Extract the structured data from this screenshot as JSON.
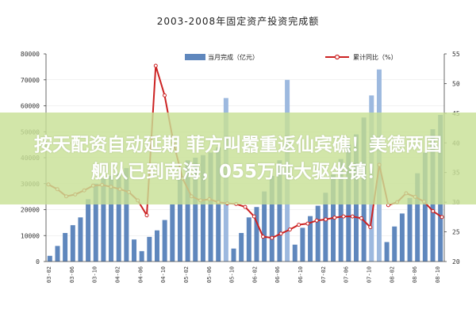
{
  "chart_data": {
    "type": "bar+line",
    "title": "2003-2008年固定资产投资完成额",
    "legend": {
      "placement": "top",
      "bar_label": "当月完成（亿元）",
      "line_label": "累计同比（%）"
    },
    "y_left": {
      "ticks": [
        "80000",
        "70000",
        "60000",
        "50000",
        "40000",
        "30000",
        "20000",
        "10000",
        "0"
      ],
      "ylim": [
        0,
        80000
      ]
    },
    "y_right": {
      "ticks": [
        "55",
        "50",
        "45",
        "40",
        "35",
        "30",
        "25",
        "20"
      ],
      "ylim": [
        20,
        55
      ]
    },
    "x_tick_labels": [
      "03-02",
      "03-06",
      "03-10",
      "04-02",
      "04-06",
      "04-10",
      "05-02",
      "05-06",
      "05-10",
      "06-02",
      "06-06",
      "06-10",
      "07-02",
      "07-06",
      "07-10",
      "08-02",
      "08-06",
      "08-10"
    ],
    "bars": [
      2200,
      6000,
      11000,
      14000,
      17000,
      24000,
      30000,
      32000,
      33000,
      34000,
      36000,
      8500,
      4000,
      9500,
      12000,
      16000,
      22000,
      33000,
      39000,
      40000,
      41000,
      42000,
      44000,
      63000,
      5000,
      11000,
      17000,
      21000,
      27000,
      33000,
      39000,
      70000,
      6500,
      13000,
      17500,
      21500,
      26500,
      33500,
      39500,
      45000,
      49000,
      55500,
      64000,
      74000,
      7500,
      13500,
      18500,
      24500,
      34000,
      42000,
      51000,
      56500
    ],
    "line": [
      33.0,
      32.2,
      31.0,
      31.3,
      32.0,
      32.8,
      32.9,
      32.6,
      32.2,
      31.7,
      30.3,
      27.8,
      53.0,
      48.0,
      40.0,
      34.0,
      31.0,
      30.3,
      30.5,
      30.0,
      29.8,
      29.7,
      29.2,
      27.6,
      24.2,
      24.0,
      24.7,
      25.4,
      26.2,
      26.4,
      26.9,
      27.1,
      27.4,
      27.6,
      27.6,
      27.3,
      25.8,
      36.3,
      29.5,
      30.0,
      31.5,
      30.9,
      30.1,
      28.5,
      27.5
    ],
    "line_x_slots": [
      0,
      2,
      4,
      6,
      8,
      10,
      12,
      14,
      16,
      18,
      20,
      22,
      24,
      26,
      28,
      30,
      32,
      34,
      36,
      38,
      40,
      42,
      44,
      46,
      48,
      50,
      52,
      54,
      56,
      58,
      60,
      62,
      64,
      66,
      68,
      70,
      72,
      74,
      76,
      78,
      80,
      82,
      84,
      86,
      88
    ],
    "colors": {
      "bar": "#5f87bd",
      "bar_highlight": "#9db9df",
      "line": "#cc2222",
      "marker": "#ffffff"
    }
  },
  "overlay": {
    "line1": "按天配资自动延期 菲方叫嚣重返仙宾礁！美德两国",
    "line2": "舰队已到南海，055万吨大驱坐镇！"
  }
}
